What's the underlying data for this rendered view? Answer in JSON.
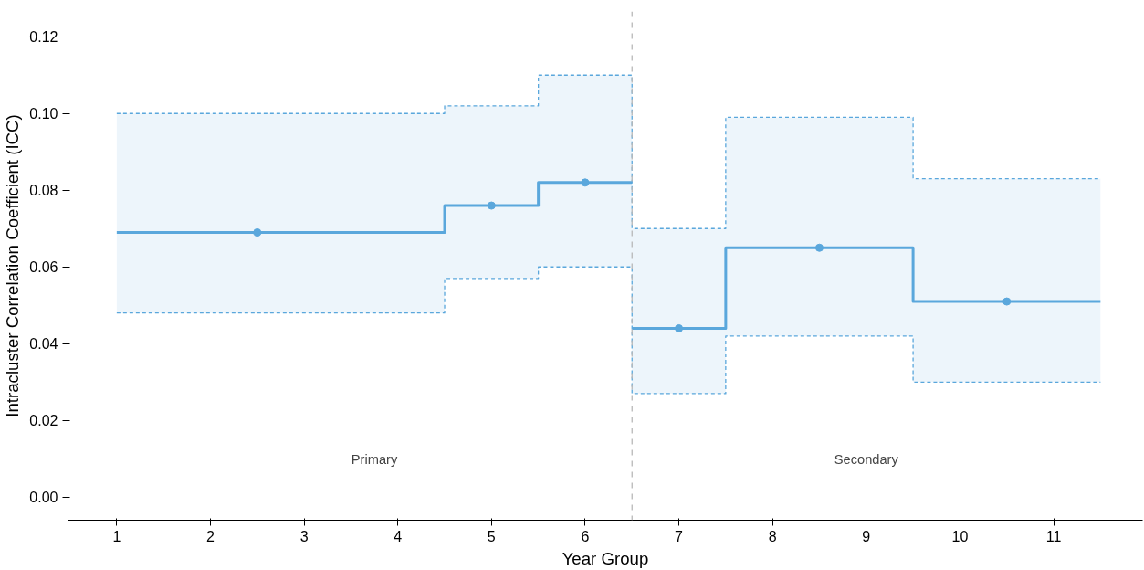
{
  "chart_data": {
    "type": "step",
    "xlabel": "Year Group",
    "ylabel": "Intracluster Correlation Coefficient (ICC)",
    "xlim": [
      0.48,
      11.95
    ],
    "ylim": [
      -0.006,
      0.1266
    ],
    "xticks": [
      1,
      2,
      3,
      4,
      5,
      6,
      7,
      8,
      9,
      10,
      11
    ],
    "yticks": [
      {
        "value": 0,
        "label": "0.00"
      },
      {
        "value": 0.02,
        "label": "0.02"
      },
      {
        "value": 0.04,
        "label": "0.04"
      },
      {
        "value": 0.06,
        "label": "0.06"
      },
      {
        "value": 0.08,
        "label": "0.08"
      },
      {
        "value": 0.1,
        "label": "0.10"
      },
      {
        "value": 0.12,
        "label": "0.12"
      }
    ],
    "grid": false,
    "line_style": "solid",
    "series": [
      {
        "type": "step",
        "color": "#5aa7dc",
        "x": [
          1,
          4.5,
          5.5,
          6.5
        ],
        "values": [
          0.069,
          0.076,
          0.082,
          0.082
        ],
        "lower": [
          0.048,
          0.057,
          0.06,
          0.06
        ],
        "upper": [
          0.1,
          0.102,
          0.11,
          0.11
        ]
      },
      {
        "color": "#5aa7dc",
        "line_style": "dashed",
        "x": [
          1,
          4.5,
          5.5,
          6.5,
          7.5,
          9.5,
          11.5
        ],
        "values": [
          0.048,
          0.057,
          0.06,
          0.027,
          0.042,
          0.03,
          0.03
        ]
      },
      {
        "color": "#5aa7dc",
        "line_style": "dashed",
        "x": [
          1,
          4.5,
          5.5,
          6.5,
          7.5,
          9.5,
          11.5
        ],
        "values": [
          0.1,
          0.102,
          0.11,
          0.07,
          0.099,
          0.083,
          0.083
        ]
      },
      {
        "color": "#5aa7dc",
        "x": [
          6.5,
          7.5,
          9.5,
          11.5
        ],
        "values": [
          0.044,
          0.065,
          0.051,
          0.051
        ],
        "lower": [
          0.027,
          0.042,
          0.03,
          0.03
        ],
        "upper": [
          0.07,
          0.099,
          0.083,
          0.083
        ]
      },
      {
        "type": "scatter",
        "color": "#5aa7dc",
        "marker": "circle",
        "x": [
          2.5,
          5,
          6,
          7,
          8.5,
          10.5
        ],
        "values": [
          0.069,
          0.076,
          0.082,
          0.044,
          0.065,
          0.051
        ]
      }
    ],
    "ref_lines": [
      {
        "axis": "x",
        "value": 6.5,
        "color": "#b8b8b8",
        "line_style": "dashed"
      }
    ],
    "annotations": [
      "Primary",
      "Secondary"
    ]
  }
}
